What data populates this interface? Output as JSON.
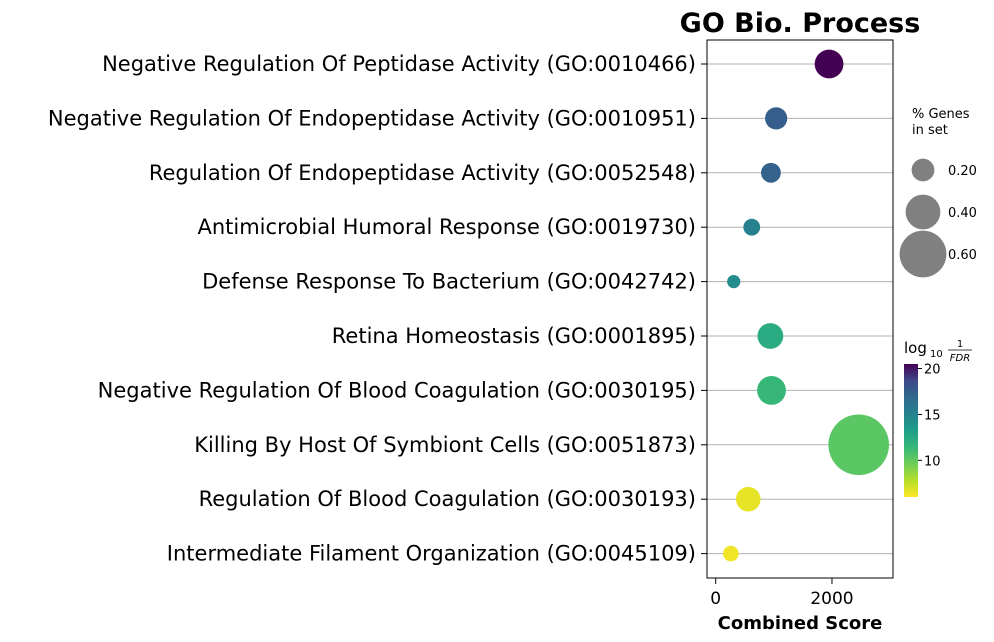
{
  "chart_data": {
    "type": "scatter",
    "title": "GO Bio. Process",
    "xlabel": "Combined Score",
    "ylabel": "",
    "xlim": [
      -150,
      3050
    ],
    "xticks": [
      {
        "value": 0,
        "label": "0"
      },
      {
        "value": 2000,
        "label": "2000"
      }
    ],
    "grid": "horizontal",
    "terms": [
      {
        "label": "Negative Regulation Of Peptidase Activity (GO:0010466)",
        "score": 1950,
        "pct_genes": 0.3,
        "neg_log10_fdr": 20.5
      },
      {
        "label": "Negative Regulation Of Endopeptidase Activity (GO:0010951)",
        "score": 1040,
        "pct_genes": 0.19,
        "neg_log10_fdr": 16.2
      },
      {
        "label": "Regulation Of Endopeptidase Activity (GO:0052548)",
        "score": 950,
        "pct_genes": 0.15,
        "neg_log10_fdr": 16.0
      },
      {
        "label": "Antimicrobial Humoral Response (GO:0019730)",
        "score": 620,
        "pct_genes": 0.1,
        "neg_log10_fdr": 14.2
      },
      {
        "label": "Defense Response To Bacterium (GO:0042742)",
        "score": 310,
        "pct_genes": 0.04,
        "neg_log10_fdr": 13.5
      },
      {
        "label": "Retina Homeostasis (GO:0001895)",
        "score": 940,
        "pct_genes": 0.25,
        "neg_log10_fdr": 11.6
      },
      {
        "label": "Negative Regulation Of Blood Coagulation (GO:0030195)",
        "score": 960,
        "pct_genes": 0.3,
        "neg_log10_fdr": 10.8
      },
      {
        "label": "Killing By Host Of Symbiont Cells (GO:0051873)",
        "score": 2460,
        "pct_genes": 0.83,
        "neg_log10_fdr": 9.8
      },
      {
        "label": "Regulation Of Blood Coagulation (GO:0030193)",
        "score": 560,
        "pct_genes": 0.23,
        "neg_log10_fdr": 6.5
      },
      {
        "label": "Intermediate Filament Organization (GO:0045109)",
        "score": 260,
        "pct_genes": 0.08,
        "neg_log10_fdr": 6.3
      }
    ],
    "size_legend": {
      "title_line1": "% Genes",
      "title_line2": "in set",
      "entries": [
        {
          "value": 0.2,
          "label": "0.20"
        },
        {
          "value": 0.4,
          "label": "0.40"
        },
        {
          "value": 0.6,
          "label": "0.60"
        }
      ]
    },
    "colorbar": {
      "title_log": "log",
      "title_sub": "10",
      "title_num": "1",
      "title_den": "FDR",
      "min": 6.0,
      "max": 20.5,
      "ticks": [
        {
          "value": 10,
          "label": "10"
        },
        {
          "value": 15,
          "label": "15"
        },
        {
          "value": 20,
          "label": "20"
        }
      ],
      "colormap": "viridis"
    }
  }
}
